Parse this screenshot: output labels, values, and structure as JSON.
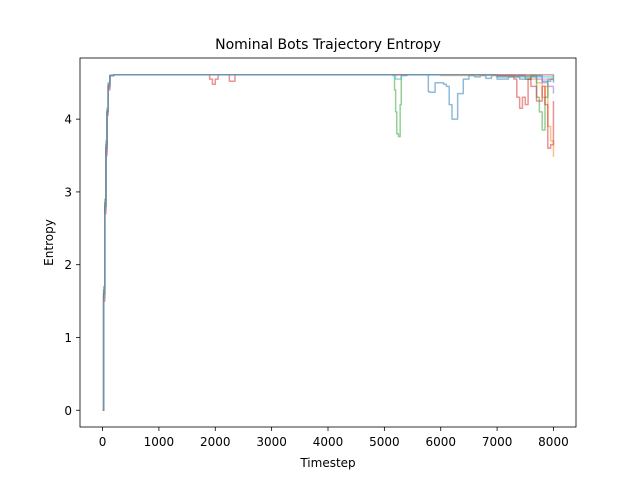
{
  "chart_data": {
    "type": "line",
    "title": "Nominal Bots Trajectory Entropy",
    "xlabel": "Timestep",
    "ylabel": "Entropy",
    "xlim": [
      -400,
      8400
    ],
    "ylim": [
      -0.23,
      4.84
    ],
    "xticks": [
      0,
      1000,
      2000,
      3000,
      4000,
      5000,
      6000,
      7000,
      8000
    ],
    "yticks": [
      0,
      1,
      2,
      3,
      4
    ],
    "grid": false,
    "legend": "none",
    "series": [
      {
        "color": "#1f77b4",
        "x": [
          0,
          20,
          40,
          60,
          80,
          100,
          130,
          200,
          1000,
          2000,
          3000,
          4000,
          5000,
          5700,
          5780,
          5800,
          5880,
          5900,
          6000,
          6050,
          6100,
          6150,
          6200,
          6250,
          6300,
          6400,
          6500,
          6600,
          6700,
          6800,
          6900,
          7000,
          7200,
          7400,
          7600,
          7800,
          7950,
          8000
        ],
        "y": [
          0,
          1.6,
          2.8,
          3.6,
          4.1,
          4.45,
          4.6,
          4.61,
          4.61,
          4.61,
          4.61,
          4.61,
          4.61,
          4.61,
          4.38,
          4.37,
          4.37,
          4.5,
          4.5,
          4.48,
          4.45,
          4.2,
          4.0,
          4.0,
          4.35,
          4.55,
          4.6,
          4.58,
          4.6,
          4.56,
          4.6,
          4.55,
          4.58,
          4.55,
          4.6,
          4.52,
          4.55,
          4.5
        ]
      },
      {
        "color": "#ff7f0e",
        "x": [
          0,
          20,
          40,
          60,
          80,
          100,
          130,
          200,
          1000,
          2000,
          3000,
          4000,
          5000,
          6000,
          7000,
          7400,
          7600,
          7700,
          7800,
          7850,
          7900,
          7950,
          8000
        ],
        "y": [
          0,
          1.5,
          2.7,
          3.5,
          4.05,
          4.4,
          4.6,
          4.61,
          4.61,
          4.61,
          4.61,
          4.61,
          4.61,
          4.6,
          4.58,
          4.6,
          4.55,
          4.5,
          4.3,
          4.45,
          3.9,
          3.7,
          3.48
        ]
      },
      {
        "color": "#2ca02c",
        "x": [
          0,
          20,
          40,
          60,
          80,
          100,
          130,
          200,
          1000,
          2000,
          3000,
          4000,
          5000,
          5150,
          5180,
          5200,
          5220,
          5250,
          5280,
          5300,
          5400,
          6000,
          7000,
          7500,
          7600,
          7700,
          7750,
          7800,
          7850,
          7900,
          8000
        ],
        "y": [
          0,
          1.7,
          2.9,
          3.7,
          4.15,
          4.5,
          4.6,
          4.61,
          4.61,
          4.61,
          4.61,
          4.61,
          4.61,
          4.6,
          4.4,
          4.1,
          3.8,
          3.76,
          4.2,
          4.6,
          4.61,
          4.61,
          4.6,
          4.55,
          4.6,
          4.3,
          4.1,
          3.85,
          4.3,
          4.55,
          4.55
        ]
      },
      {
        "color": "#d62728",
        "x": [
          0,
          20,
          40,
          60,
          80,
          100,
          130,
          200,
          1000,
          1800,
          1900,
          1950,
          2000,
          2050,
          2100,
          2200,
          2250,
          2300,
          2350,
          2400,
          3000,
          4000,
          5000,
          6000,
          7000,
          7300,
          7350,
          7400,
          7450,
          7500,
          7550,
          7600,
          7700,
          7800,
          7850,
          7900,
          7950,
          8000
        ],
        "y": [
          0,
          1.6,
          2.8,
          3.6,
          4.1,
          4.45,
          4.6,
          4.61,
          4.61,
          4.61,
          4.55,
          4.48,
          4.55,
          4.61,
          4.61,
          4.61,
          4.52,
          4.52,
          4.61,
          4.61,
          4.61,
          4.61,
          4.61,
          4.61,
          4.6,
          4.55,
          4.3,
          4.15,
          4.3,
          4.2,
          4.55,
          4.45,
          4.25,
          4.45,
          4.2,
          3.6,
          3.65,
          4.25
        ]
      },
      {
        "color": "#9467bd",
        "x": [
          0,
          20,
          40,
          60,
          80,
          100,
          130,
          200,
          1000,
          2000,
          3000,
          4000,
          5000,
          6000,
          7000,
          7500,
          7700,
          7800,
          7900,
          8000
        ],
        "y": [
          0,
          1.55,
          2.75,
          3.55,
          4.1,
          4.42,
          4.6,
          4.61,
          4.61,
          4.61,
          4.61,
          4.61,
          4.61,
          4.61,
          4.6,
          4.58,
          4.55,
          4.5,
          4.45,
          4.35
        ]
      },
      {
        "color": "#8c564b",
        "x": [
          0,
          20,
          40,
          60,
          80,
          100,
          130,
          200,
          1000,
          2000,
          3000,
          4000,
          5000,
          6000,
          7000,
          8000
        ],
        "y": [
          0,
          1.65,
          2.85,
          3.65,
          4.12,
          4.48,
          4.6,
          4.61,
          4.61,
          4.61,
          4.61,
          4.61,
          4.61,
          4.61,
          4.61,
          4.55
        ]
      },
      {
        "color": "#e377c2",
        "x": [
          0,
          20,
          40,
          60,
          80,
          100,
          130,
          200,
          1000,
          2000,
          3000,
          4000,
          5000,
          6000,
          7000,
          7800,
          8000
        ],
        "y": [
          0,
          1.5,
          2.7,
          3.5,
          4.05,
          4.4,
          4.6,
          4.61,
          4.61,
          4.61,
          4.61,
          4.61,
          4.61,
          4.61,
          4.59,
          4.55,
          4.52
        ]
      },
      {
        "color": "#17becf",
        "x": [
          0,
          20,
          40,
          60,
          80,
          100,
          130,
          200,
          1000,
          2000,
          3000,
          4000,
          5000,
          5200,
          5300,
          5400,
          6000,
          7000,
          8000
        ],
        "y": [
          0,
          1.6,
          2.8,
          3.6,
          4.1,
          4.45,
          4.6,
          4.61,
          4.61,
          4.61,
          4.61,
          4.61,
          4.61,
          4.55,
          4.6,
          4.61,
          4.61,
          4.58,
          4.6
        ]
      }
    ]
  }
}
